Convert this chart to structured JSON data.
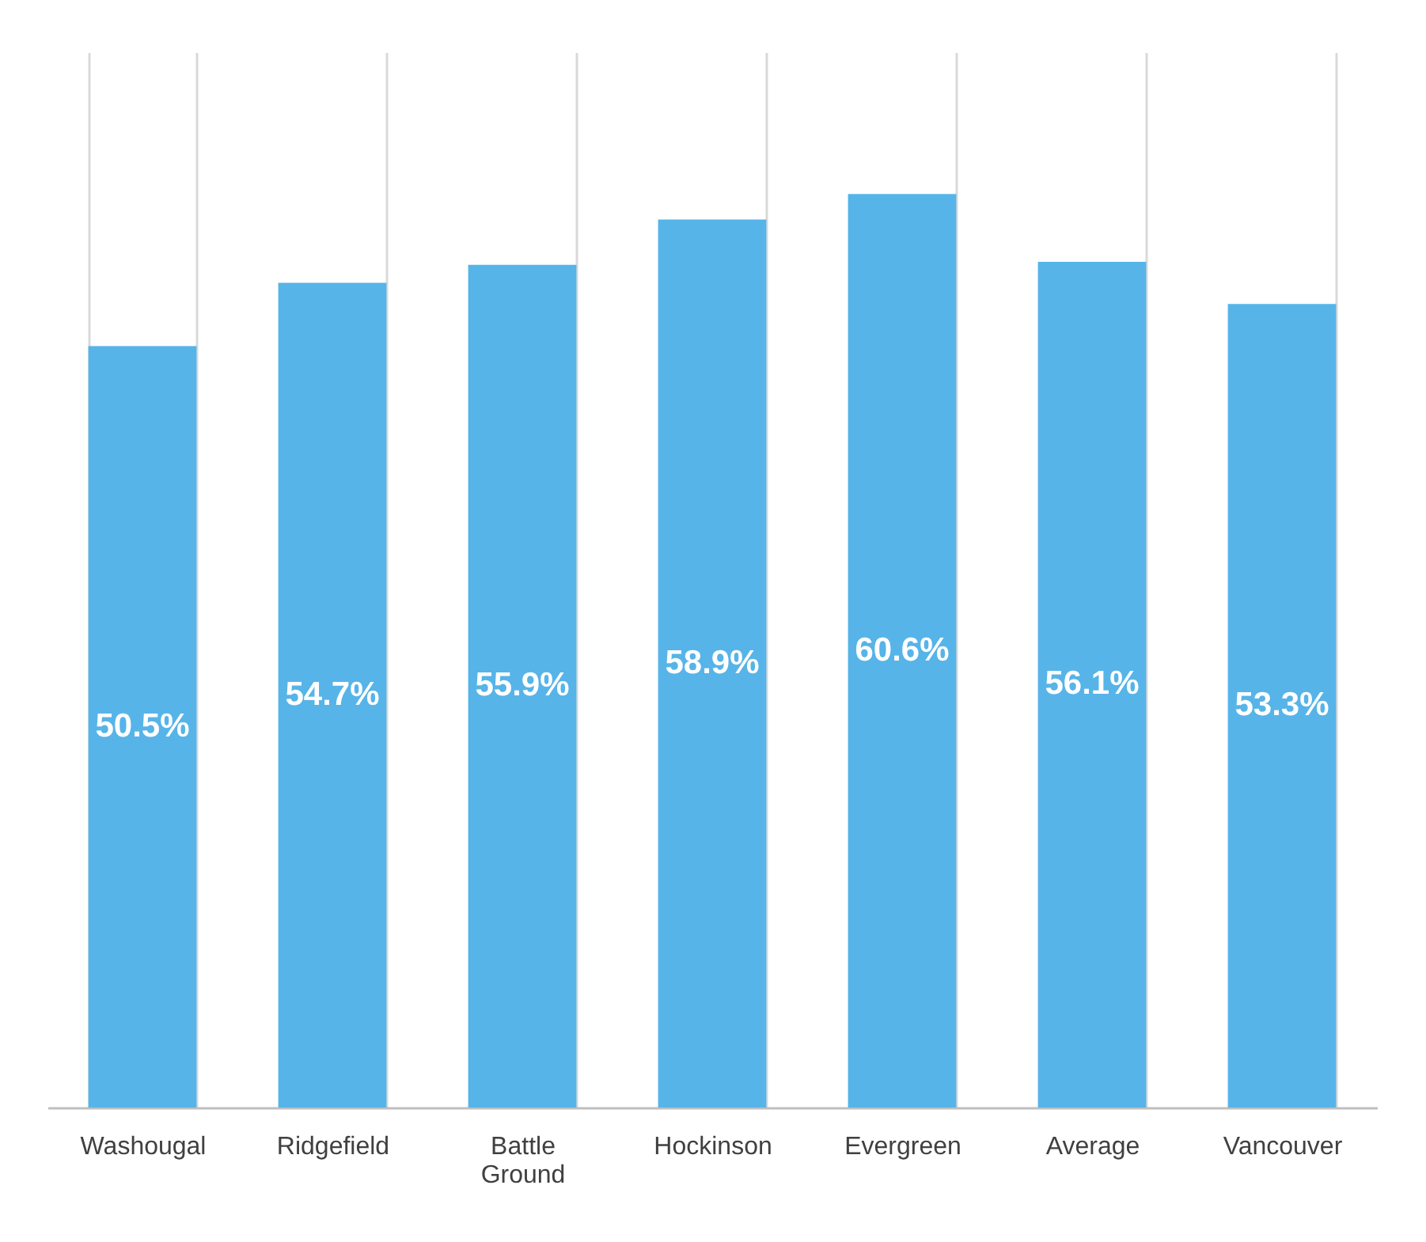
{
  "chart_data": {
    "type": "bar",
    "categories": [
      "Washougal",
      "Ridgefield",
      "Battle Ground",
      "Hockinson",
      "Evergreen",
      "Average",
      "Vancouver"
    ],
    "values": [
      50.5,
      54.7,
      55.9,
      58.9,
      60.6,
      56.1,
      53.3
    ],
    "value_labels": [
      "50.5%",
      "54.7%",
      "55.9%",
      "58.9%",
      "60.6%",
      "56.1%",
      "53.3%"
    ],
    "color": "#56b4e8",
    "ylim": [
      0,
      70
    ],
    "grid": "x"
  }
}
